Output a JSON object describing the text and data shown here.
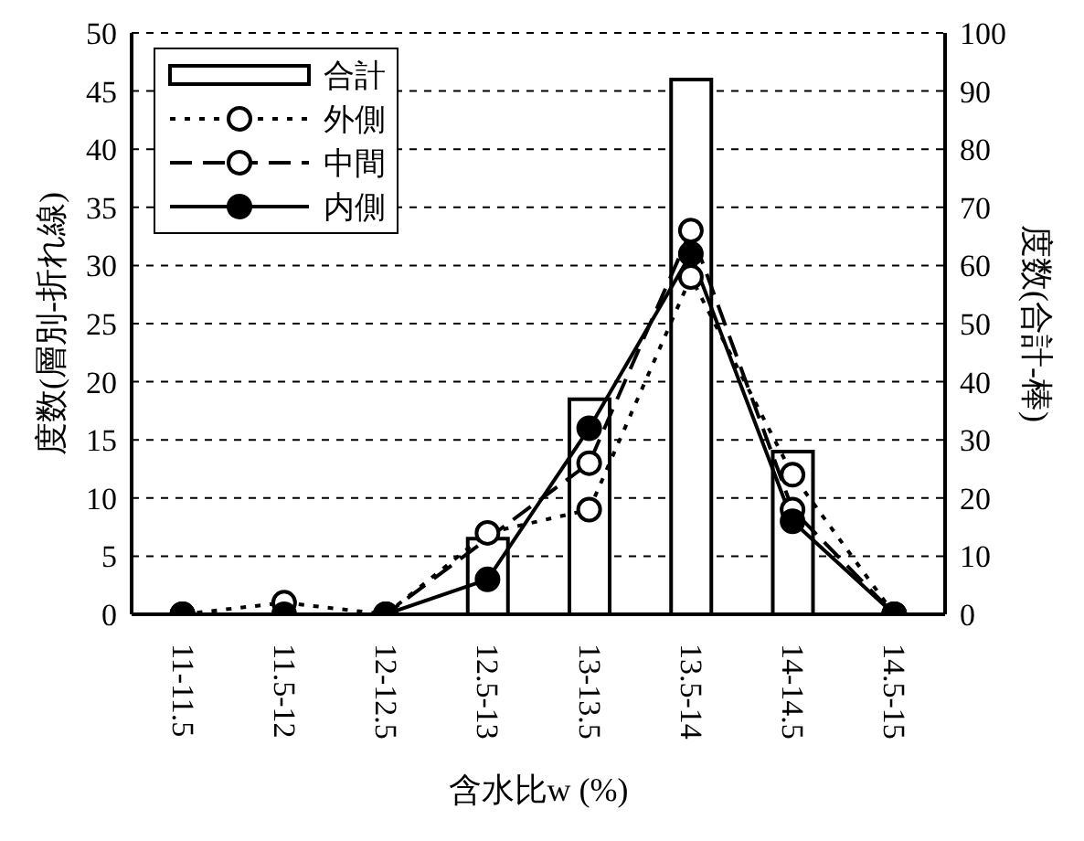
{
  "chart_data": {
    "type": "line",
    "xlabel": "含水比w (%)",
    "ylabel": "度数(層別-折れ線)",
    "y2label": "度数(合計-棒)",
    "categories": [
      "11-11.5",
      "11.5-12",
      "12-12.5",
      "12.5-13",
      "13-13.5",
      "13.5-14",
      "14-14.5",
      "14.5-15"
    ],
    "series": [
      {
        "name": "合計",
        "type": "bar",
        "axis": "y2",
        "color": "#ffffff",
        "values": [
          0,
          0,
          0,
          13,
          37,
          92,
          28,
          0
        ]
      },
      {
        "name": "外側",
        "color": "#000000",
        "line_style": "dotted",
        "values": [
          0,
          1,
          0,
          7,
          9,
          29,
          12,
          0
        ]
      },
      {
        "name": "中間",
        "color": "#000000",
        "line_style": "dashed",
        "values": [
          0,
          null,
          0,
          null,
          13,
          33,
          9,
          0
        ]
      },
      {
        "name": "内側",
        "color": "#000000",
        "line_style": "solid",
        "values": [
          0,
          0,
          0,
          3,
          16,
          31,
          8,
          0
        ]
      }
    ],
    "ylim": [
      0,
      50
    ],
    "yticks": [
      0,
      5,
      10,
      15,
      20,
      25,
      30,
      35,
      40,
      45,
      50
    ],
    "y2lim": [
      0,
      100
    ],
    "y2ticks": [
      0,
      10,
      20,
      30,
      40,
      50,
      60,
      70,
      80,
      90,
      100
    ],
    "grid": "y",
    "legend": "top left",
    "marker": "circle"
  }
}
